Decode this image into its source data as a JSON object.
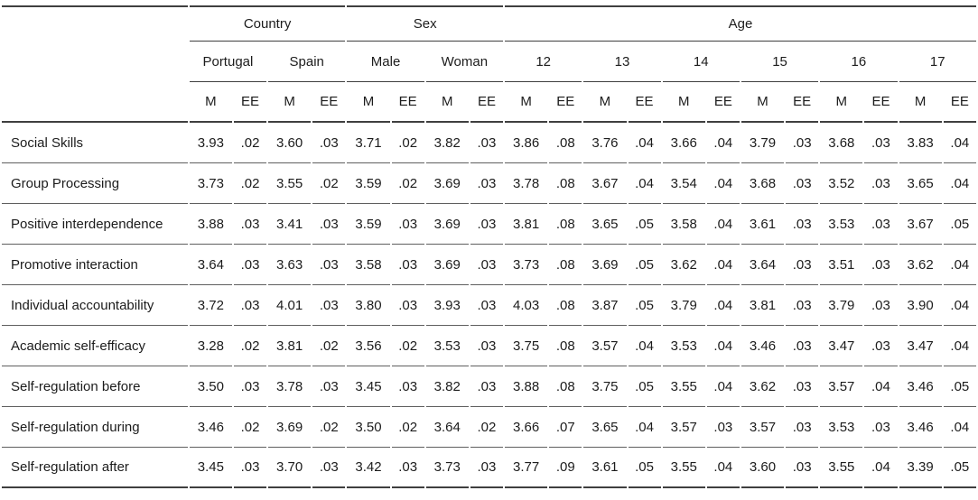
{
  "page": {
    "background": "#ffffff",
    "text_color": "#1c1c1c",
    "rule_color_major": "#3f3f3f",
    "rule_color_minor": "#5f5f5f"
  },
  "table": {
    "corner_label": "",
    "groups": [
      {
        "label": "Country",
        "subgroups": [
          "Portugal",
          "Spain"
        ]
      },
      {
        "label": "Sex",
        "subgroups": [
          "Male",
          "Woman"
        ]
      },
      {
        "label": "Age",
        "subgroups": [
          "12",
          "13",
          "14",
          "15",
          "16",
          "17"
        ]
      }
    ],
    "stat_labels": {
      "mean": "M",
      "standard_error": "EE"
    },
    "rows": [
      {
        "label": "Social Skills",
        "values": [
          "3.93",
          ".02",
          "3.60",
          ".03",
          "3.71",
          ".02",
          "3.82",
          ".03",
          "3.86",
          ".08",
          "3.76",
          ".04",
          "3.66",
          ".04",
          "3.79",
          ".03",
          "3.68",
          ".03",
          "3.83",
          ".04"
        ]
      },
      {
        "label": "Group Processing",
        "values": [
          "3.73",
          ".02",
          "3.55",
          ".02",
          "3.59",
          ".02",
          "3.69",
          ".03",
          "3.78",
          ".08",
          "3.67",
          ".04",
          "3.54",
          ".04",
          "3.68",
          ".03",
          "3.52",
          ".03",
          "3.65",
          ".04"
        ]
      },
      {
        "label": "Positive interdependence",
        "values": [
          "3.88",
          ".03",
          "3.41",
          ".03",
          "3.59",
          ".03",
          "3.69",
          ".03",
          "3.81",
          ".08",
          "3.65",
          ".05",
          "3.58",
          ".04",
          "3.61",
          ".03",
          "3.53",
          ".03",
          "3.67",
          ".05"
        ]
      },
      {
        "label": "Promotive interaction",
        "values": [
          "3.64",
          ".03",
          "3.63",
          ".03",
          "3.58",
          ".03",
          "3.69",
          ".03",
          "3.73",
          ".08",
          "3.69",
          ".05",
          "3.62",
          ".04",
          "3.64",
          ".03",
          "3.51",
          ".03",
          "3.62",
          ".04"
        ]
      },
      {
        "label": "Individual accountability",
        "values": [
          "3.72",
          ".03",
          "4.01",
          ".03",
          "3.80",
          ".03",
          "3.93",
          ".03",
          "4.03",
          ".08",
          "3.87",
          ".05",
          "3.79",
          ".04",
          "3.81",
          ".03",
          "3.79",
          ".03",
          "3.90",
          ".04"
        ]
      },
      {
        "label": "Academic self-efficacy",
        "values": [
          "3.28",
          ".02",
          "3.81",
          ".02",
          "3.56",
          ".02",
          "3.53",
          ".03",
          "3.75",
          ".08",
          "3.57",
          ".04",
          "3.53",
          ".04",
          "3.46",
          ".03",
          "3.47",
          ".03",
          "3.47",
          ".04"
        ]
      },
      {
        "label": "Self-regulation before",
        "values": [
          "3.50",
          ".03",
          "3.78",
          ".03",
          "3.45",
          ".03",
          "3.82",
          ".03",
          "3.88",
          ".08",
          "3.75",
          ".05",
          "3.55",
          ".04",
          "3.62",
          ".03",
          "3.57",
          ".04",
          "3.46",
          ".05"
        ]
      },
      {
        "label": "Self-regulation during",
        "values": [
          "3.46",
          ".02",
          "3.69",
          ".02",
          "3.50",
          ".02",
          "3.64",
          ".02",
          "3.66",
          ".07",
          "3.65",
          ".04",
          "3.57",
          ".03",
          "3.57",
          ".03",
          "3.53",
          ".03",
          "3.46",
          ".04"
        ]
      },
      {
        "label": "Self-regulation after",
        "values": [
          "3.45",
          ".03",
          "3.70",
          ".03",
          "3.42",
          ".03",
          "3.73",
          ".03",
          "3.77",
          ".09",
          "3.61",
          ".05",
          "3.55",
          ".04",
          "3.60",
          ".03",
          "3.55",
          ".04",
          "3.39",
          ".05"
        ]
      }
    ]
  }
}
